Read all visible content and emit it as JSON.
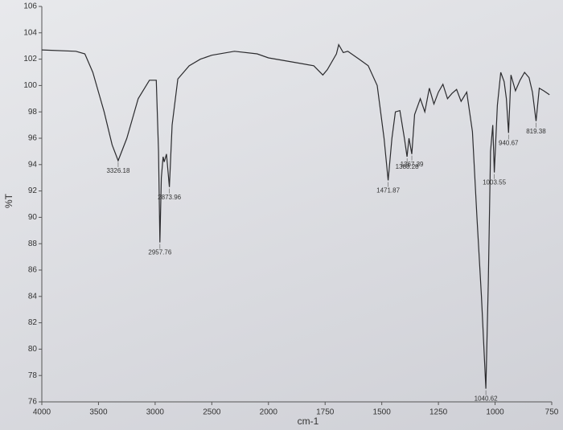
{
  "chart_data": {
    "type": "line",
    "xlabel": "cm-1",
    "ylabel": "%T",
    "x": [
      4000,
      3700,
      3620,
      3550,
      3450,
      3380,
      3326.18,
      3250,
      3150,
      3050,
      2990,
      2970,
      2957.76,
      2945,
      2930,
      2920,
      2900,
      2873.96,
      2850,
      2800,
      2700,
      2600,
      2500,
      2300,
      2100,
      2000,
      1900,
      1800,
      1760,
      1740,
      1700,
      1690,
      1670,
      1650,
      1600,
      1560,
      1520,
      1490,
      1471.87,
      1455,
      1440,
      1420,
      1400,
      1388.28,
      1380,
      1367.39,
      1355,
      1330,
      1310,
      1290,
      1270,
      1250,
      1230,
      1210,
      1190,
      1170,
      1150,
      1125,
      1100,
      1080,
      1060,
      1040.62,
      1030,
      1020,
      1010,
      1003.55,
      990,
      975,
      960,
      950,
      940.67,
      930,
      910,
      890,
      870,
      850,
      835,
      819.38,
      805,
      785,
      760
    ],
    "values": [
      102.7,
      102.6,
      102.4,
      101,
      98,
      95.5,
      94.3,
      96,
      99,
      100.4,
      100.4,
      95,
      88.1,
      93,
      94.6,
      94.2,
      94.8,
      92.3,
      97,
      100.5,
      101.5,
      102,
      102.3,
      102.6,
      102.4,
      102.1,
      101.8,
      101.5,
      100.8,
      101.2,
      102.4,
      103.1,
      102.5,
      102.6,
      102,
      101.5,
      100,
      96,
      92.8,
      96,
      98,
      98.1,
      96,
      94.6,
      96,
      94.8,
      97.8,
      99,
      98,
      99.8,
      98.6,
      99.5,
      100.1,
      99,
      99.4,
      99.7,
      98.8,
      99.5,
      96.5,
      90,
      84,
      77,
      85,
      95,
      97,
      93.4,
      98.5,
      101,
      100.3,
      99,
      96.4,
      100.8,
      99.6,
      100.4,
      101,
      100.6,
      99.5,
      97.3,
      99.8,
      99.6,
      99.3
    ],
    "color": "#2b2b2e",
    "peak_labels": [
      3326.18,
      2957.76,
      2873.96,
      1471.87,
      1388.28,
      1367.39,
      1040.62,
      1003.55,
      940.67,
      819.38
    ],
    "xlim": [
      4000,
      750
    ],
    "xticks": [
      4000,
      3500,
      3000,
      2500,
      2000,
      1750,
      1500,
      1250,
      1000,
      750
    ],
    "ylim": [
      76,
      106
    ],
    "yticks": [
      76,
      78,
      80,
      82,
      84,
      86,
      88,
      90,
      92,
      94,
      96,
      98,
      100,
      102,
      104,
      106
    ],
    "grid": false
  }
}
